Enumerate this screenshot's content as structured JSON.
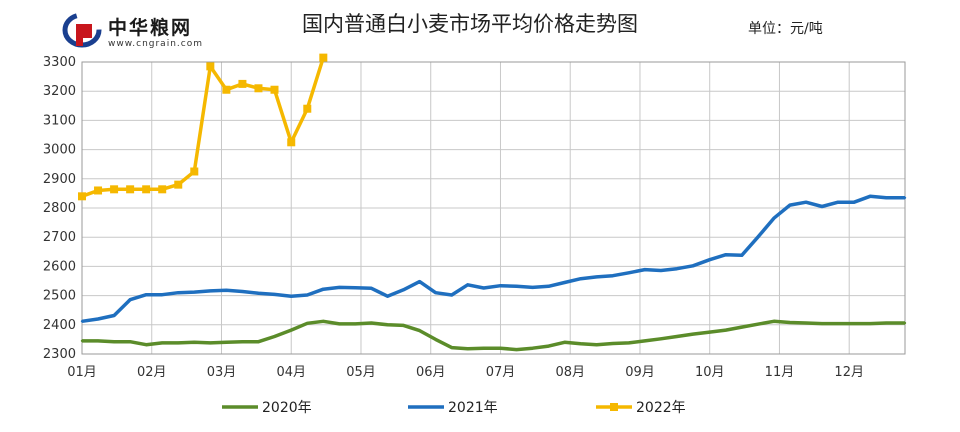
{
  "header": {
    "logo_text": "中华粮网",
    "logo_url_text": "www.cngrain.com",
    "title": "国内普通白小麦市场平均价格走势图",
    "unit": "单位：元/吨"
  },
  "chart_data": {
    "type": "line",
    "title": "国内普通白小麦市场平均价格走势图",
    "xlabel": "",
    "ylabel": "",
    "x_ticks": [
      "01月",
      "02月",
      "03月",
      "04月",
      "05月",
      "06月",
      "07月",
      "08月",
      "09月",
      "10月",
      "11月",
      "12月"
    ],
    "xlim": [
      0,
      11.8
    ],
    "ylim": [
      2300,
      3300
    ],
    "y_ticks": [
      2300,
      2400,
      2500,
      2600,
      2700,
      2800,
      2900,
      3000,
      3100,
      3200,
      3300
    ],
    "grid": true,
    "legend_position": "bottom",
    "series": [
      {
        "name": "2020年",
        "color": "#5b8c2a",
        "marker": "none",
        "points": [
          [
            0,
            2345
          ],
          [
            0.23,
            2345
          ],
          [
            0.46,
            2342
          ],
          [
            0.69,
            2342
          ],
          [
            0.92,
            2332
          ],
          [
            1.15,
            2338
          ],
          [
            1.38,
            2338
          ],
          [
            1.61,
            2340
          ],
          [
            1.84,
            2338
          ],
          [
            2.07,
            2340
          ],
          [
            2.3,
            2342
          ],
          [
            2.53,
            2342
          ],
          [
            2.76,
            2360
          ],
          [
            3.0,
            2382
          ],
          [
            3.23,
            2405
          ],
          [
            3.46,
            2412
          ],
          [
            3.69,
            2403
          ],
          [
            3.92,
            2403
          ],
          [
            4.15,
            2406
          ],
          [
            4.38,
            2400
          ],
          [
            4.61,
            2398
          ],
          [
            4.84,
            2380
          ],
          [
            5.07,
            2350
          ],
          [
            5.3,
            2322
          ],
          [
            5.53,
            2318
          ],
          [
            5.76,
            2320
          ],
          [
            6.0,
            2320
          ],
          [
            6.23,
            2315
          ],
          [
            6.46,
            2320
          ],
          [
            6.69,
            2327
          ],
          [
            6.92,
            2340
          ],
          [
            7.15,
            2335
          ],
          [
            7.38,
            2332
          ],
          [
            7.61,
            2336
          ],
          [
            7.84,
            2338
          ],
          [
            8.07,
            2345
          ],
          [
            8.3,
            2352
          ],
          [
            8.53,
            2360
          ],
          [
            8.76,
            2368
          ],
          [
            9.0,
            2375
          ],
          [
            9.23,
            2382
          ],
          [
            9.46,
            2392
          ],
          [
            9.69,
            2402
          ],
          [
            9.92,
            2412
          ],
          [
            10.15,
            2408
          ],
          [
            10.38,
            2406
          ],
          [
            10.61,
            2404
          ],
          [
            10.84,
            2404
          ],
          [
            11.07,
            2404
          ],
          [
            11.3,
            2404
          ],
          [
            11.53,
            2406
          ],
          [
            11.8,
            2406
          ]
        ]
      },
      {
        "name": "2021年",
        "color": "#1f6fbf",
        "marker": "none",
        "points": [
          [
            0,
            2412
          ],
          [
            0.23,
            2420
          ],
          [
            0.46,
            2432
          ],
          [
            0.69,
            2486
          ],
          [
            0.92,
            2503
          ],
          [
            1.15,
            2503
          ],
          [
            1.38,
            2510
          ],
          [
            1.61,
            2512
          ],
          [
            1.84,
            2516
          ],
          [
            2.07,
            2518
          ],
          [
            2.3,
            2514
          ],
          [
            2.53,
            2508
          ],
          [
            2.76,
            2504
          ],
          [
            3.0,
            2498
          ],
          [
            3.23,
            2502
          ],
          [
            3.46,
            2522
          ],
          [
            3.69,
            2528
          ],
          [
            3.92,
            2527
          ],
          [
            4.15,
            2525
          ],
          [
            4.38,
            2498
          ],
          [
            4.61,
            2520
          ],
          [
            4.84,
            2548
          ],
          [
            5.07,
            2510
          ],
          [
            5.3,
            2502
          ],
          [
            5.53,
            2537
          ],
          [
            5.76,
            2526
          ],
          [
            6.0,
            2534
          ],
          [
            6.23,
            2532
          ],
          [
            6.46,
            2528
          ],
          [
            6.69,
            2532
          ],
          [
            6.92,
            2545
          ],
          [
            7.15,
            2558
          ],
          [
            7.38,
            2564
          ],
          [
            7.61,
            2568
          ],
          [
            7.84,
            2578
          ],
          [
            8.07,
            2589
          ],
          [
            8.3,
            2586
          ],
          [
            8.53,
            2592
          ],
          [
            8.76,
            2602
          ],
          [
            9.0,
            2623
          ],
          [
            9.23,
            2640
          ],
          [
            9.46,
            2638
          ],
          [
            9.69,
            2700
          ],
          [
            9.92,
            2765
          ],
          [
            10.15,
            2810
          ],
          [
            10.38,
            2820
          ],
          [
            10.61,
            2805
          ],
          [
            10.84,
            2820
          ],
          [
            11.07,
            2820
          ],
          [
            11.3,
            2840
          ],
          [
            11.53,
            2835
          ],
          [
            11.8,
            2835
          ]
        ]
      },
      {
        "name": "2022年",
        "color": "#f5b800",
        "marker": "square",
        "points": [
          [
            0,
            2840
          ],
          [
            0.23,
            2860
          ],
          [
            0.46,
            2864
          ],
          [
            0.69,
            2864
          ],
          [
            0.92,
            2864
          ],
          [
            1.15,
            2864
          ],
          [
            1.38,
            2880
          ],
          [
            1.61,
            2925
          ],
          [
            1.84,
            3285
          ],
          [
            2.07,
            3205
          ],
          [
            2.3,
            3225
          ],
          [
            2.53,
            3210
          ],
          [
            2.76,
            3205
          ],
          [
            3.0,
            3025
          ],
          [
            3.23,
            3140
          ],
          [
            3.46,
            3315
          ]
        ]
      }
    ]
  }
}
